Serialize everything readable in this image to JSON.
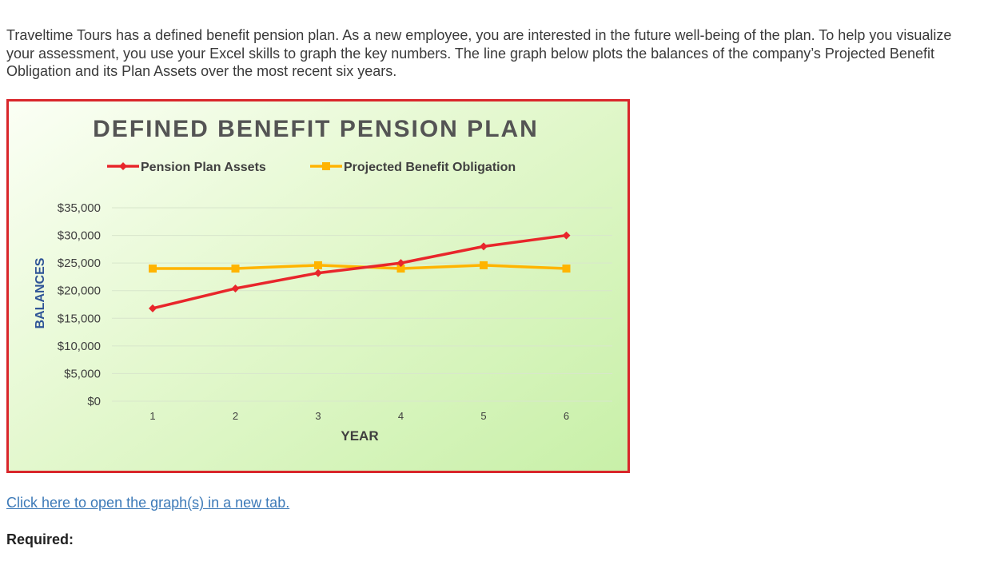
{
  "intro_text": "Traveltime Tours has a defined benefit pension plan. As a new employee, you are interested in the future well-being of the plan. To help you visualize your assessment, you use your Excel skills to graph the key numbers. The line graph below plots the balances of the company’s Projected Benefit Obligation and its Plan Assets over the most recent six years.",
  "link_text": "Click here to open the graph(s) in a new tab.",
  "required_label": "Required:",
  "colors": {
    "frame_border": "#d9262b",
    "assets_line": "#e8262b",
    "pbo_line": "#ffb400",
    "axis_text": "#3f3f3f",
    "ylabel_text": "#2f5597",
    "gridline": "#d8e6cc"
  },
  "chart_data": {
    "type": "line",
    "title": "DEFINED BENEFIT PENSION PLAN",
    "xlabel": "YEAR",
    "ylabel": "BALANCES",
    "categories": [
      "1",
      "2",
      "3",
      "4",
      "5",
      "6"
    ],
    "y_ticks": [
      "$0",
      "$5,000",
      "$10,000",
      "$15,000",
      "$20,000",
      "$25,000",
      "$30,000",
      "$35,000"
    ],
    "ylim": [
      0,
      35000
    ],
    "grid": true,
    "legend_position": "top",
    "series": [
      {
        "name": "Pension Plan Assets",
        "marker": "diamond",
        "values": [
          16800,
          20400,
          23200,
          25000,
          28000,
          30000
        ]
      },
      {
        "name": "Projected Benefit Obligation",
        "marker": "square",
        "values": [
          24000,
          24000,
          24600,
          24000,
          24600,
          24000
        ]
      }
    ]
  }
}
